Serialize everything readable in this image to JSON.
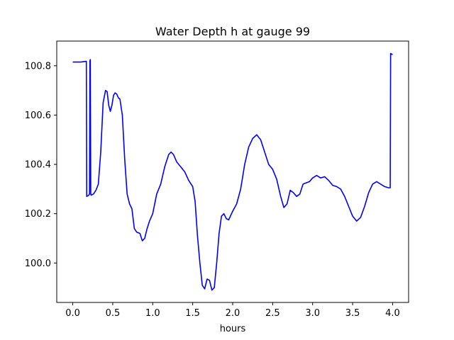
{
  "chart_data": {
    "type": "line",
    "title": "Water Depth h at gauge 99",
    "xlabel": "hours",
    "ylabel": "",
    "xlim": [
      -0.2,
      4.2
    ],
    "ylim": [
      99.84,
      100.9
    ],
    "xticks": [
      0.0,
      0.5,
      1.0,
      1.5,
      2.0,
      2.5,
      3.0,
      3.5,
      4.0
    ],
    "xtick_labels": [
      "0.0",
      "0.5",
      "1.0",
      "1.5",
      "2.0",
      "2.5",
      "3.0",
      "3.5",
      "4.0"
    ],
    "yticks": [
      100.0,
      100.2,
      100.4,
      100.6,
      100.8
    ],
    "ytick_labels": [
      "100.0",
      "100.2",
      "100.4",
      "100.6",
      "100.8"
    ],
    "grid": false,
    "legend": "none",
    "series": [
      {
        "color": "#0000ff",
        "x": [
          0.0,
          0.1,
          0.17,
          0.175,
          0.2,
          0.21,
          0.215,
          0.22,
          0.225,
          0.23,
          0.26,
          0.29,
          0.32,
          0.35,
          0.38,
          0.41,
          0.43,
          0.45,
          0.47,
          0.49,
          0.51,
          0.53,
          0.55,
          0.57,
          0.59,
          0.62,
          0.65,
          0.68,
          0.71,
          0.74,
          0.77,
          0.8,
          0.84,
          0.87,
          0.9,
          0.93,
          0.96,
          1.0,
          1.05,
          1.1,
          1.15,
          1.2,
          1.23,
          1.26,
          1.3,
          1.35,
          1.4,
          1.45,
          1.5,
          1.53,
          1.56,
          1.59,
          1.62,
          1.65,
          1.68,
          1.71,
          1.74,
          1.77,
          1.8,
          1.83,
          1.86,
          1.89,
          1.92,
          1.95,
          2.0,
          2.05,
          2.1,
          2.15,
          2.2,
          2.25,
          2.3,
          2.35,
          2.4,
          2.45,
          2.5,
          2.55,
          2.6,
          2.64,
          2.68,
          2.72,
          2.76,
          2.8,
          2.84,
          2.88,
          2.92,
          2.96,
          3.0,
          3.05,
          3.1,
          3.15,
          3.2,
          3.25,
          3.3,
          3.35,
          3.4,
          3.45,
          3.5,
          3.55,
          3.6,
          3.65,
          3.7,
          3.75,
          3.8,
          3.85,
          3.9,
          3.95,
          3.97,
          3.975,
          4.0
        ],
        "y": [
          100.815,
          100.815,
          100.818,
          100.27,
          100.275,
          100.28,
          100.82,
          100.825,
          100.28,
          100.275,
          100.28,
          100.295,
          100.32,
          100.45,
          100.65,
          100.7,
          100.695,
          100.64,
          100.615,
          100.64,
          100.68,
          100.69,
          100.685,
          100.67,
          100.665,
          100.6,
          100.42,
          100.28,
          100.24,
          100.22,
          100.14,
          100.125,
          100.12,
          100.09,
          100.1,
          100.14,
          100.17,
          100.2,
          100.28,
          100.32,
          100.39,
          100.44,
          100.45,
          100.44,
          100.41,
          100.39,
          100.37,
          100.335,
          100.31,
          100.25,
          100.11,
          100.0,
          99.91,
          99.895,
          99.935,
          99.93,
          99.89,
          99.9,
          100.0,
          100.12,
          100.19,
          100.2,
          100.18,
          100.175,
          100.21,
          100.24,
          100.3,
          100.4,
          100.47,
          100.505,
          100.52,
          100.5,
          100.45,
          100.4,
          100.38,
          100.34,
          100.27,
          100.225,
          100.24,
          100.295,
          100.285,
          100.27,
          100.28,
          100.32,
          100.325,
          100.33,
          100.345,
          100.355,
          100.345,
          100.35,
          100.335,
          100.315,
          100.31,
          100.3,
          100.27,
          100.23,
          100.19,
          100.17,
          100.185,
          100.23,
          100.285,
          100.32,
          100.33,
          100.32,
          100.31,
          100.305,
          100.305,
          100.85,
          100.845
        ]
      }
    ]
  }
}
